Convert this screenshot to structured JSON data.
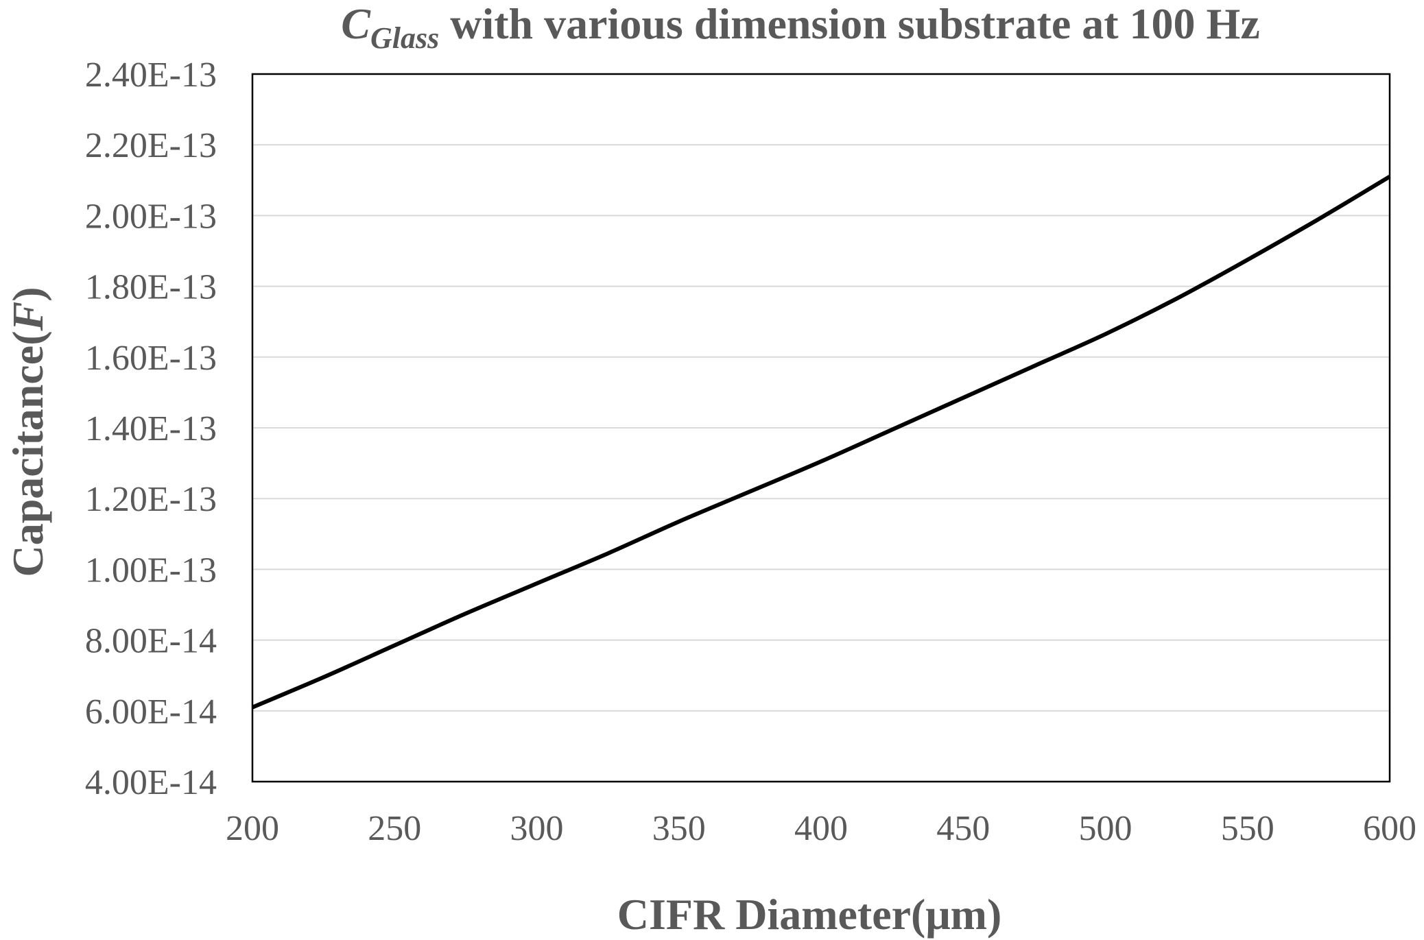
{
  "chart_data": {
    "type": "line",
    "title": {
      "symbol": "C",
      "subscript": "Glass",
      "text": " with various dimension substrate at 100 Hz"
    },
    "xlabel": "CIFR Diameter(μm)",
    "ylabel": {
      "text": "Capacitance(",
      "unit": "F",
      "close": ")"
    },
    "xlim": [
      200,
      600
    ],
    "ylim": [
      4e-14,
      2.4e-13
    ],
    "x_ticks": [
      200,
      250,
      300,
      350,
      400,
      450,
      500,
      550,
      600
    ],
    "x_tick_labels": [
      "200",
      "250",
      "300",
      "350",
      "400",
      "450",
      "500",
      "550",
      "600"
    ],
    "y_ticks": [
      4e-14,
      6e-14,
      8e-14,
      1e-13,
      1.2e-13,
      1.4e-13,
      1.6e-13,
      1.8e-13,
      2e-13,
      2.2e-13,
      2.4e-13
    ],
    "y_tick_labels": [
      "4.00E-14",
      "6.00E-14",
      "8.00E-14",
      "1.00E-13",
      "1.20E-13",
      "1.40E-13",
      "1.60E-13",
      "1.80E-13",
      "2.00E-13",
      "2.20E-13",
      "2.40E-13"
    ],
    "grid": "horizontal",
    "legend": "none",
    "series": [
      {
        "color": "#000000",
        "x": [
          200,
          225,
          250,
          275,
          300,
          325,
          350,
          375,
          400,
          425,
          450,
          475,
          500,
          525,
          550,
          575,
          600
        ],
        "values": [
          6.1e-14,
          6.95e-14,
          7.85e-14,
          8.75e-14,
          9.6e-14,
          1.045e-13,
          1.135e-13,
          1.22e-13,
          1.305e-13,
          1.395e-13,
          1.485e-13,
          1.575e-13,
          1.665e-13,
          1.765e-13,
          1.875e-13,
          1.99e-13,
          2.11e-13
        ]
      }
    ]
  }
}
